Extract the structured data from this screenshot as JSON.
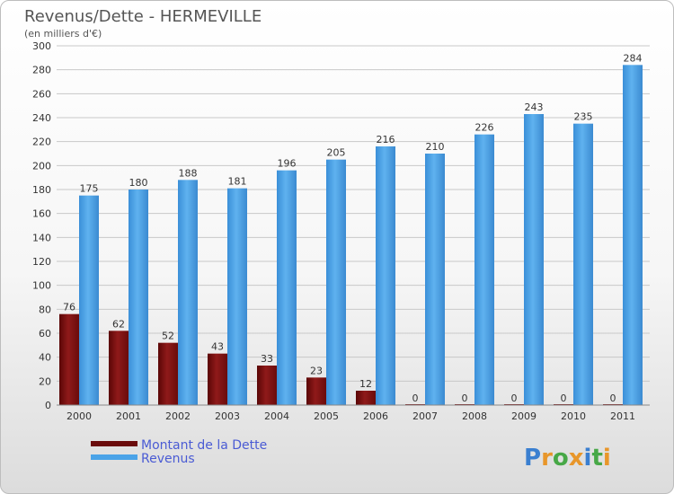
{
  "chart_data": {
    "type": "bar",
    "title": "Revenus/Dette - HERMEVILLE",
    "subtitle": "(en milliers d'€)",
    "categories": [
      "2000",
      "2001",
      "2002",
      "2003",
      "2004",
      "2005",
      "2006",
      "2007",
      "2008",
      "2009",
      "2010",
      "2011"
    ],
    "series": [
      {
        "name": "Montant de la Dette",
        "values": [
          76,
          62,
          52,
          43,
          33,
          23,
          12,
          0,
          0,
          0,
          0,
          0
        ],
        "color": "#7a1010"
      },
      {
        "name": "Revenus",
        "values": [
          175,
          180,
          188,
          181,
          196,
          205,
          216,
          210,
          226,
          243,
          235,
          284
        ],
        "color": "#4aa3e8"
      }
    ],
    "ylim": [
      0,
      300
    ],
    "yticks": [
      0,
      20,
      40,
      60,
      80,
      100,
      120,
      140,
      160,
      180,
      200,
      220,
      240,
      260,
      280,
      300
    ],
    "grid": true,
    "legend_position": "bottom-left"
  },
  "logo": {
    "text": "Proxiti",
    "colors": [
      "#3a7fd0",
      "#e8962a",
      "#47a847",
      "#e8962a",
      "#3a7fd0",
      "#47a847",
      "#e8962a"
    ]
  }
}
